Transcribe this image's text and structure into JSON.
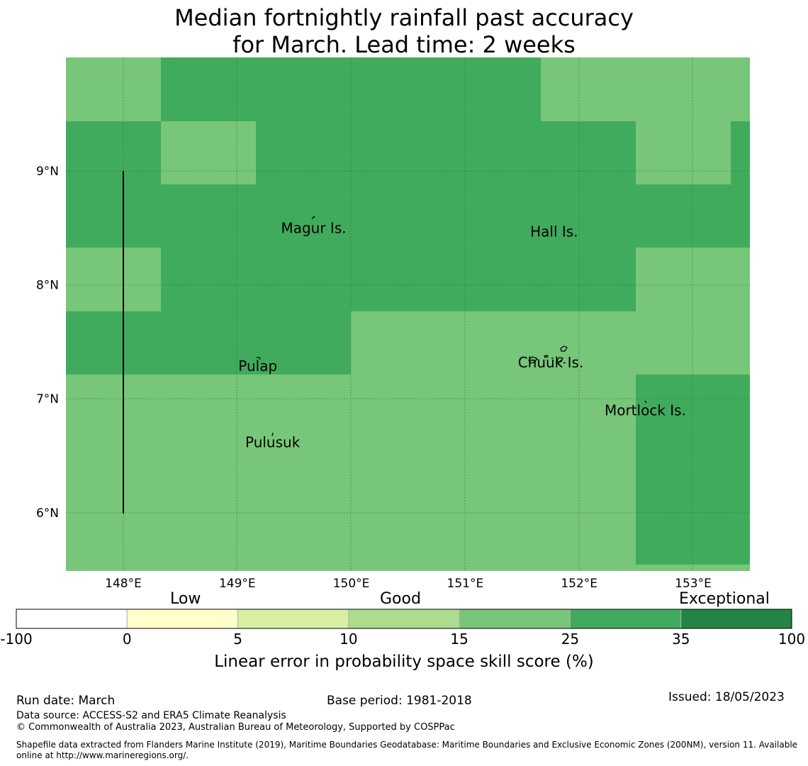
{
  "title": {
    "line1": "Median fortnightly rainfall past accuracy",
    "line2": "for March. Lead time: 2 weeks"
  },
  "map": {
    "lon_ticks": [
      "148°E",
      "149°E",
      "150°E",
      "151°E",
      "152°E",
      "153°E"
    ],
    "lat_ticks": [
      "9°N",
      "8°N",
      "7°N",
      "6°N"
    ],
    "islands": [
      {
        "name": "Magur Is.",
        "lon": 149.67,
        "lat": 8.58
      },
      {
        "name": "Hall Is.",
        "lon": 151.78,
        "lat": 8.55
      },
      {
        "name": "Pulap",
        "lon": 149.18,
        "lat": 7.37
      },
      {
        "name": "Chuuk Is.",
        "lon": 151.75,
        "lat": 7.4
      },
      {
        "name": "Mortlock Is.",
        "lon": 152.58,
        "lat": 6.98
      },
      {
        "name": "Pulusuk",
        "lon": 149.31,
        "lat": 6.7
      }
    ],
    "colors": {
      "class_15_25": "#78c679",
      "class_25_35": "#41ab5d"
    }
  },
  "colorbar": {
    "categories": [
      "Low",
      "Good",
      "Exceptional"
    ],
    "ticks": [
      "-100",
      "0",
      "5",
      "10",
      "15",
      "25",
      "35",
      "100"
    ],
    "colors": [
      "#ffffff",
      "#ffffcc",
      "#d9f0a3",
      "#addd8e",
      "#78c679",
      "#41ab5d",
      "#238443"
    ],
    "label": "Linear error in probability space skill score (%)"
  },
  "footer": {
    "run_date": "Run date: March",
    "base_period": "Base period: 1981-2018",
    "issued": "Issued: 18/05/2023",
    "data_source": "Data source: ACCESS-S2 and ERA5 Climate Reanalysis",
    "copyright": "© Commonwealth of Australia 2023, Australian Bureau of Meteorology, Supported by COSPPac",
    "shapefile": "Shapefile data extracted from Flanders Marine Institute (2019), Maritime Boundaries Geodatabase: Maritime Boundaries and Exclusive Economic Zones (200NM), version 11. Available online at http://www.marineregions.org/."
  }
}
